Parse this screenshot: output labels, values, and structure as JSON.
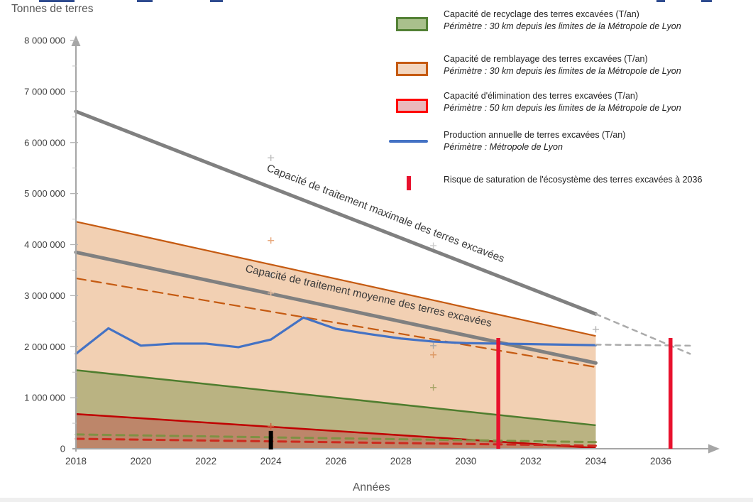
{
  "page": {
    "y_axis_title": "Tonnes de terres",
    "x_axis_title": "Années"
  },
  "legend": {
    "items": [
      {
        "type": "area",
        "fill": "#a9c08c",
        "border": "#538135",
        "label": "Capacité de recyclage des terres excavées (T/an)",
        "scope": "Périmètre : 30 km depuis les limites de la Métropole de Lyon"
      },
      {
        "type": "area",
        "fill": "#f3d6bf",
        "border": "#c55a11",
        "label": "Capacité de remblayage des terres excavées (T/an)",
        "scope": "Périmètre : 30 km depuis les limites de la Métropole de Lyon"
      },
      {
        "type": "area",
        "fill": "#eab8bc",
        "border": "#ff0000",
        "label": "Capacité d'élimination des terres excavées (T/an)",
        "scope": "Périmètre : 50 km depuis les limites de la Métropole de Lyon"
      },
      {
        "type": "line",
        "stroke": "#4472c4",
        "label": "Production annuelle de terres excavées (T/an)",
        "scope": "Périmètre : Métropole de Lyon"
      },
      {
        "type": "bar",
        "stroke": "#e8112d",
        "label": "Risque de saturation de l'écosystème des terres excavées à 2036",
        "scope": ""
      }
    ]
  },
  "chart_data": {
    "type": "area",
    "title": "",
    "xlabel": "Années",
    "ylabel": "Tonnes de terres",
    "xlim": [
      2018,
      2037.6
    ],
    "ylim": [
      0,
      8000000
    ],
    "grid": false,
    "x_ticks": [
      2018,
      2020,
      2022,
      2024,
      2026,
      2028,
      2030,
      2032,
      2034,
      2036
    ],
    "y_ticks": [
      0,
      1000000,
      2000000,
      3000000,
      4000000,
      5000000,
      6000000,
      7000000,
      8000000
    ],
    "bands": [
      {
        "name": "capacite-remblayage",
        "fill": "#f2d0b3",
        "border": "#c55a11",
        "border_width": 2.2,
        "top_edge": [
          [
            2018,
            4450000
          ],
          [
            2034,
            2210000
          ]
        ]
      },
      {
        "name": "capacite-recyclage",
        "fill": "rgba(110,139,61,0.42)",
        "border": "#4e7d2e",
        "border_width": 2.5,
        "top_edge": [
          [
            2018,
            1540000
          ],
          [
            2034,
            460000
          ]
        ]
      },
      {
        "name": "capacite-elimination",
        "fill": "rgba(192,80,77,0.45)",
        "border": "#c00000",
        "border_width": 2.5,
        "top_edge": [
          [
            2018,
            680000
          ],
          [
            2034,
            15000
          ]
        ]
      }
    ],
    "lines": [
      {
        "name": "capacite-traitement-maximale",
        "stroke": "#808080",
        "width": 5,
        "dash": null,
        "points": [
          [
            2018,
            6610000
          ],
          [
            2034,
            2640000
          ]
        ]
      },
      {
        "name": "capacite-maximale-projection",
        "stroke": "#ababab",
        "width": 2.5,
        "dash": "7 7",
        "points": [
          [
            2034,
            2640000
          ],
          [
            2036.9,
            1860000
          ]
        ]
      },
      {
        "name": "capacite-traitement-moyenne",
        "stroke": "#808080",
        "width": 5,
        "dash": null,
        "points": [
          [
            2018,
            3850000
          ],
          [
            2034,
            1680000
          ]
        ]
      },
      {
        "name": "remblayage-moyen-pointille",
        "stroke": "#c55a11",
        "width": 2.2,
        "dash": "14 8",
        "points": [
          [
            2018,
            3340000
          ],
          [
            2034,
            1600000
          ]
        ]
      },
      {
        "name": "recyclage-moyen-pointille",
        "stroke": "#7f9144",
        "width": 3,
        "dash": "11 8",
        "points": [
          [
            2018,
            280000
          ],
          [
            2034,
            130000
          ]
        ]
      },
      {
        "name": "elimination-moyenne-pointille",
        "stroke": "#cc2a1e",
        "width": 3,
        "dash": "11 8",
        "points": [
          [
            2018,
            195000
          ],
          [
            2034,
            60000
          ]
        ]
      },
      {
        "name": "production-annuelle",
        "stroke": "#4472c4",
        "width": 3.2,
        "dash": null,
        "points": [
          [
            2018,
            1860000
          ],
          [
            2019,
            2360000
          ],
          [
            2020,
            2020000
          ],
          [
            2021,
            2060000
          ],
          [
            2022,
            2060000
          ],
          [
            2023,
            1990000
          ],
          [
            2024,
            2140000
          ],
          [
            2025,
            2570000
          ],
          [
            2026,
            2350000
          ],
          [
            2027,
            2250000
          ],
          [
            2028,
            2160000
          ],
          [
            2029,
            2100000
          ],
          [
            2030,
            2070000
          ],
          [
            2031,
            2060000
          ],
          [
            2032,
            2050000
          ],
          [
            2033,
            2040000
          ],
          [
            2034,
            2030000
          ]
        ]
      },
      {
        "name": "production-projection",
        "stroke": "#ababab",
        "width": 2.5,
        "dash": "7 7",
        "points": [
          [
            2034,
            2040000
          ],
          [
            2036.9,
            2020000
          ]
        ]
      }
    ],
    "vertical_markers": [
      {
        "name": "jalon-2024",
        "x": 2024,
        "y_from": -15000,
        "y_to": 350000,
        "stroke": "#000000",
        "width": 6
      },
      {
        "name": "saturation-2031",
        "x": 2031,
        "y_from": 0,
        "y_to": 2170000,
        "stroke": "#e8112d",
        "width": 5.5
      },
      {
        "name": "saturation-2036",
        "x": 2036.3,
        "y_from": 0,
        "y_to": 2170000,
        "stroke": "#e8112d",
        "width": 5.5
      }
    ],
    "plus_marks": [
      {
        "x": 2024,
        "y": 5700000,
        "color": "#bdbdbd"
      },
      {
        "x": 2024,
        "y": 4080000,
        "color": "#e8a87c"
      },
      {
        "x": 2024,
        "y": 3400000,
        "color": "#cdcdcd"
      },
      {
        "x": 2024,
        "y": 3050000,
        "color": "#e8bd9d"
      },
      {
        "x": 2024,
        "y": 440000,
        "color": "#cf5a3a"
      },
      {
        "x": 2029,
        "y": 3980000,
        "color": "#cdcdcd"
      },
      {
        "x": 2029,
        "y": 2020000,
        "color": "#a6a6a6"
      },
      {
        "x": 2029,
        "y": 1840000,
        "color": "#dd9a66"
      },
      {
        "x": 2029,
        "y": 1200000,
        "color": "#a8a568"
      },
      {
        "x": 2034,
        "y": 2340000,
        "color": "#b3b3b3"
      }
    ],
    "annotations": [
      {
        "text": "Capacité de traitement maximale des terres excavées",
        "anchor_x": 2023.85,
        "anchor_y": 5450000,
        "angle": 21.2
      },
      {
        "text": "Capacité de traitement moyenne des terres excavées",
        "anchor_x": 2023.2,
        "anchor_y": 3470000,
        "angle": 12.6
      }
    ],
    "legend_position": "top-right",
    "top_artifacts": [
      {
        "x": 55,
        "w": 50
      },
      {
        "x": 193,
        "w": 22
      },
      {
        "x": 296,
        "w": 18
      },
      {
        "x": 925,
        "w": 12
      },
      {
        "x": 988,
        "w": 15
      }
    ]
  }
}
